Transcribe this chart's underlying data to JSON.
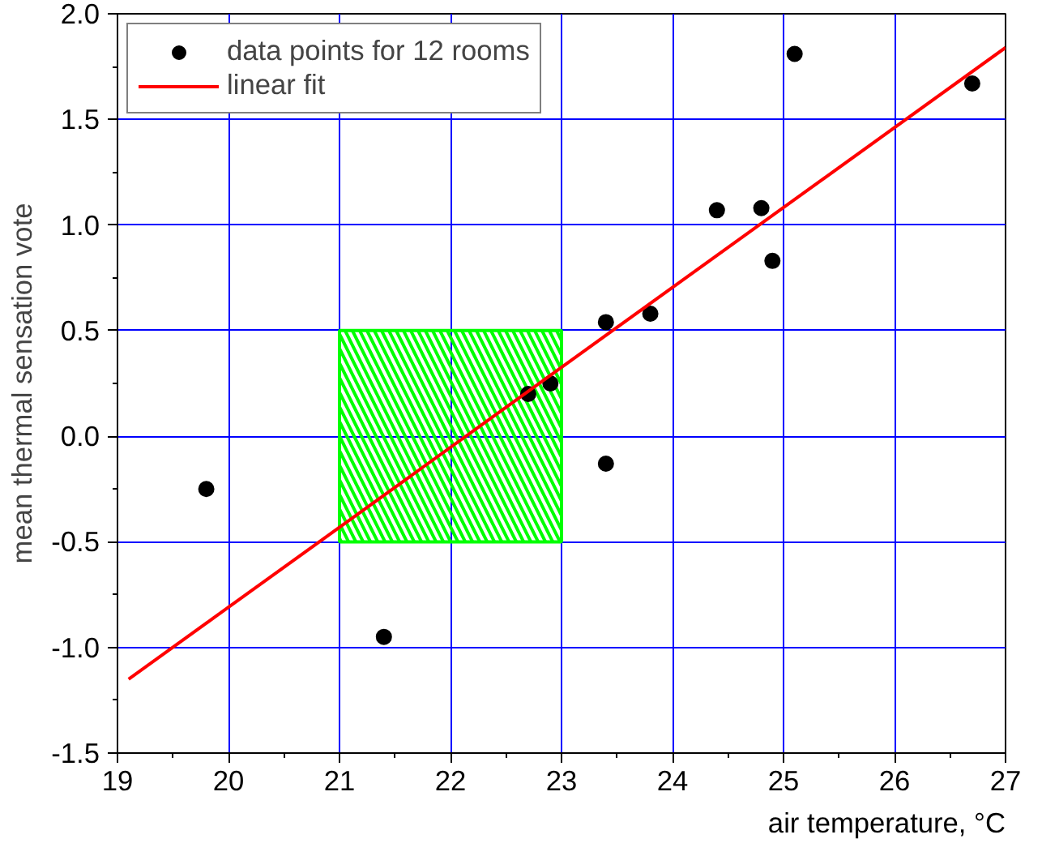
{
  "chart_data": {
    "type": "scatter",
    "xlabel": "air temperature, °C",
    "ylabel": "mean thermal sensation vote",
    "series": [
      {
        "type": "bar",
        "color": "#00ff00",
        "x": [
          22
        ],
        "base": [
          -0.5
        ],
        "values": [
          1.0
        ]
      },
      {
        "name": "data points for 12 rooms",
        "color": "#000000",
        "marker": "circle",
        "x": [
          19.8,
          21.4,
          22.7,
          22.9,
          23.4,
          23.4,
          23.8,
          24.4,
          24.8,
          24.9,
          25.1,
          26.7
        ],
        "values": [
          -0.25,
          -0.95,
          0.2,
          0.25,
          0.54,
          -0.13,
          0.58,
          1.07,
          1.08,
          0.83,
          1.81,
          1.67
        ]
      },
      {
        "name": "linear fit",
        "type": "line",
        "color": "#ff0000",
        "line_style": "solid",
        "x": [
          19.1,
          27.0
        ],
        "values": [
          -1.15,
          1.84
        ]
      }
    ],
    "xlim": [
      19,
      27
    ],
    "xticks": [
      19,
      20,
      21,
      22,
      23,
      24,
      25,
      26,
      27
    ],
    "ylim": [
      -1.5,
      2.0
    ],
    "yticks": [
      {
        "value": -1.5,
        "label": "-1.5"
      },
      {
        "value": -1.0,
        "label": "-1.0"
      },
      {
        "value": -0.5,
        "label": "-0.5"
      },
      {
        "value": 0.0,
        "label": "0.0"
      },
      {
        "value": 0.5,
        "label": "0.5"
      },
      {
        "value": 1.0,
        "label": "1.0"
      },
      {
        "value": 1.5,
        "label": "1.5"
      },
      {
        "value": 2.0,
        "label": "2.0"
      }
    ],
    "grid": true,
    "legend": "top left"
  }
}
